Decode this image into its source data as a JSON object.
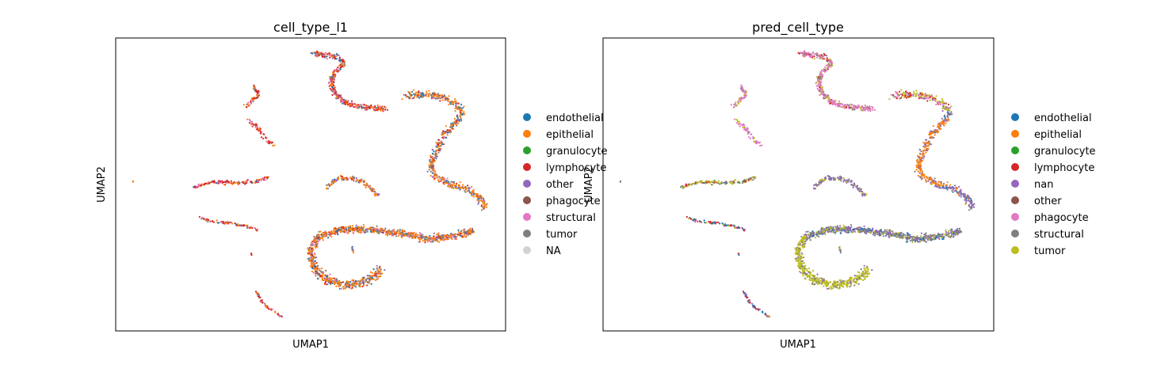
{
  "chart_data": [
    {
      "type": "scatter",
      "title": "cell_type_l1",
      "xlabel": "UMAP1",
      "ylabel": "UMAP2",
      "grid": false,
      "legend_placement": "right",
      "legend": [
        {
          "label": "endothelial",
          "color": "#1f77b4"
        },
        {
          "label": "epithelial",
          "color": "#ff7f0e"
        },
        {
          "label": "granulocyte",
          "color": "#2ca02c"
        },
        {
          "label": "lymphocyte",
          "color": "#d62728"
        },
        {
          "label": "other",
          "color": "#9467bd"
        },
        {
          "label": "phagocyte",
          "color": "#8c564b"
        },
        {
          "label": "structural",
          "color": "#e377c2"
        },
        {
          "label": "tumor",
          "color": "#7f7f7f"
        },
        {
          "label": "NA",
          "color": "#d3d3d3"
        }
      ],
      "dominant_colors": [
        "#ff7f0e",
        "#7f7f7f",
        "#d62728",
        "#e377c2",
        "#1f77b4",
        "#9467bd"
      ]
    },
    {
      "type": "scatter",
      "title": "pred_cell_type",
      "xlabel": "UMAP1",
      "ylabel": "UMAP2",
      "grid": false,
      "legend_placement": "right",
      "legend": [
        {
          "label": "endothelial",
          "color": "#1f77b4"
        },
        {
          "label": "epithelial",
          "color": "#ff7f0e"
        },
        {
          "label": "granulocyte",
          "color": "#2ca02c"
        },
        {
          "label": "lymphocyte",
          "color": "#d62728"
        },
        {
          "label": "nan",
          "color": "#9467bd"
        },
        {
          "label": "other",
          "color": "#8c564b"
        },
        {
          "label": "phagocyte",
          "color": "#e377c2"
        },
        {
          "label": "structural",
          "color": "#7f7f7f"
        },
        {
          "label": "tumor",
          "color": "#bcbd22"
        }
      ],
      "dominant_colors": [
        "#bcbd22",
        "#7f7f7f",
        "#e377c2",
        "#9467bd",
        "#ff7f0e",
        "#d62728",
        "#1f77b4"
      ]
    }
  ]
}
